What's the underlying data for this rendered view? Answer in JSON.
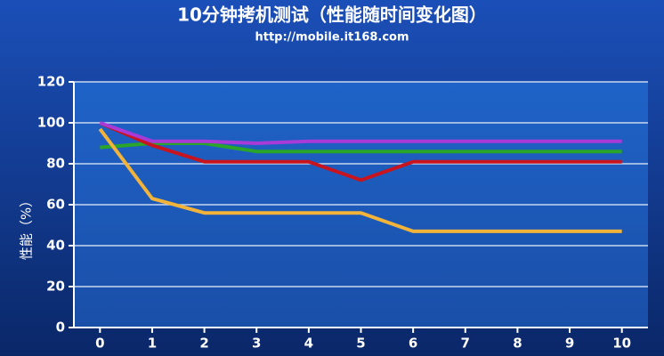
{
  "chart_data": {
    "type": "line",
    "title": "10分钟拷机测试（性能随时间变化图）",
    "subtitle": "http://mobile.it168.com",
    "y_label": "性能（%）",
    "x": [
      0,
      1,
      2,
      3,
      4,
      5,
      6,
      7,
      8,
      9,
      10
    ],
    "xlim": [
      -0.5,
      10.5
    ],
    "xticks": [
      0,
      1,
      2,
      3,
      4,
      5,
      6,
      7,
      8,
      9,
      10
    ],
    "ylim": [
      0,
      120
    ],
    "yticks": [
      0,
      20,
      40,
      60,
      80,
      100,
      120
    ],
    "grid": true,
    "series": [
      {
        "color": "#2aa52a",
        "values": [
          88,
          90,
          90,
          86,
          86,
          86,
          86,
          86,
          86,
          86,
          86
        ]
      },
      {
        "color": "#c8141e",
        "values": [
          100,
          89,
          81,
          81,
          81,
          72,
          81,
          81,
          81,
          81,
          81
        ]
      },
      {
        "color": "#a83ad8",
        "values": [
          100,
          91,
          91,
          90,
          91,
          91,
          91,
          91,
          91,
          91,
          91
        ]
      },
      {
        "color": "#f2b33a",
        "values": [
          97,
          63,
          56,
          56,
          56,
          56,
          47,
          47,
          47,
          47,
          47
        ]
      }
    ]
  }
}
